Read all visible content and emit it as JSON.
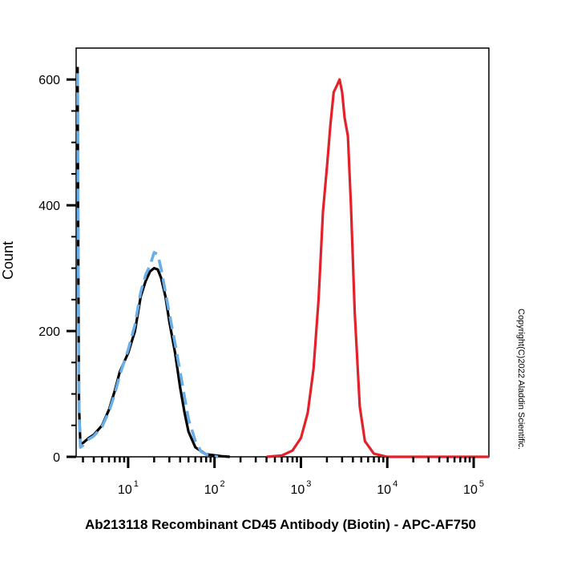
{
  "chart_data": {
    "type": "line",
    "title": "Ab213118 Recombinant CD45 Antibody (Biotin) - APC-AF750",
    "xlabel": "",
    "ylabel": "Count",
    "xscale": "log",
    "xlim": [
      2.5,
      150000
    ],
    "ylim": [
      0,
      650
    ],
    "x_ticks": [
      {
        "base": "10",
        "exp": "1",
        "value": 10
      },
      {
        "base": "10",
        "exp": "2",
        "value": 100
      },
      {
        "base": "10",
        "exp": "3",
        "value": 1000
      },
      {
        "base": "10",
        "exp": "4",
        "value": 10000
      },
      {
        "base": "10",
        "exp": "5",
        "value": 100000
      }
    ],
    "y_ticks": [
      {
        "label": "0",
        "value": 0
      },
      {
        "label": "200",
        "value": 200
      },
      {
        "label": "400",
        "value": 400
      },
      {
        "label": "600",
        "value": 600
      }
    ],
    "grid": false,
    "legend": "none",
    "series": [
      {
        "color": "#000000",
        "dash": "solid",
        "points": [
          [
            2.6,
            620
          ],
          [
            2.65,
            300
          ],
          [
            2.7,
            80
          ],
          [
            2.8,
            20
          ],
          [
            3,
            22
          ],
          [
            3.5,
            30
          ],
          [
            4,
            35
          ],
          [
            5,
            50
          ],
          [
            6,
            75
          ],
          [
            7,
            105
          ],
          [
            8,
            135
          ],
          [
            10,
            165
          ],
          [
            12,
            200
          ],
          [
            14,
            255
          ],
          [
            16,
            280
          ],
          [
            18,
            295
          ],
          [
            20,
            300
          ],
          [
            22,
            298
          ],
          [
            24,
            285
          ],
          [
            27,
            255
          ],
          [
            30,
            215
          ],
          [
            35,
            165
          ],
          [
            40,
            110
          ],
          [
            45,
            70
          ],
          [
            50,
            40
          ],
          [
            60,
            15
          ],
          [
            80,
            4
          ],
          [
            120,
            1
          ],
          [
            150,
            0
          ]
        ]
      },
      {
        "color": "#6aaee8",
        "dash": "dashed",
        "points": [
          [
            2.6,
            610
          ],
          [
            2.65,
            300
          ],
          [
            2.7,
            70
          ],
          [
            2.8,
            15
          ],
          [
            3,
            18
          ],
          [
            3.5,
            28
          ],
          [
            4,
            33
          ],
          [
            5,
            48
          ],
          [
            6,
            72
          ],
          [
            7,
            100
          ],
          [
            8,
            130
          ],
          [
            10,
            170
          ],
          [
            12,
            210
          ],
          [
            14,
            262
          ],
          [
            16,
            290
          ],
          [
            18,
            305
          ],
          [
            20,
            325
          ],
          [
            22,
            322
          ],
          [
            24,
            300
          ],
          [
            27,
            262
          ],
          [
            30,
            228
          ],
          [
            35,
            180
          ],
          [
            40,
            135
          ],
          [
            45,
            95
          ],
          [
            50,
            60
          ],
          [
            60,
            25
          ],
          [
            70,
            8
          ],
          [
            85,
            2
          ],
          [
            110,
            0
          ]
        ]
      },
      {
        "color": "#e3212b",
        "dash": "solid",
        "points": [
          [
            400,
            0
          ],
          [
            600,
            2
          ],
          [
            800,
            10
          ],
          [
            1000,
            30
          ],
          [
            1200,
            70
          ],
          [
            1400,
            140
          ],
          [
            1600,
            250
          ],
          [
            1800,
            390
          ],
          [
            2000,
            460
          ],
          [
            2200,
            530
          ],
          [
            2400,
            580
          ],
          [
            2600,
            590
          ],
          [
            2800,
            600
          ],
          [
            3000,
            580
          ],
          [
            3200,
            540
          ],
          [
            3500,
            510
          ],
          [
            3800,
            400
          ],
          [
            4200,
            230
          ],
          [
            4800,
            80
          ],
          [
            5500,
            25
          ],
          [
            7000,
            5
          ],
          [
            10000,
            0
          ],
          [
            150000,
            0
          ]
        ]
      }
    ]
  },
  "copyright": "Copyright(C)2022 Aladdin Scientific."
}
